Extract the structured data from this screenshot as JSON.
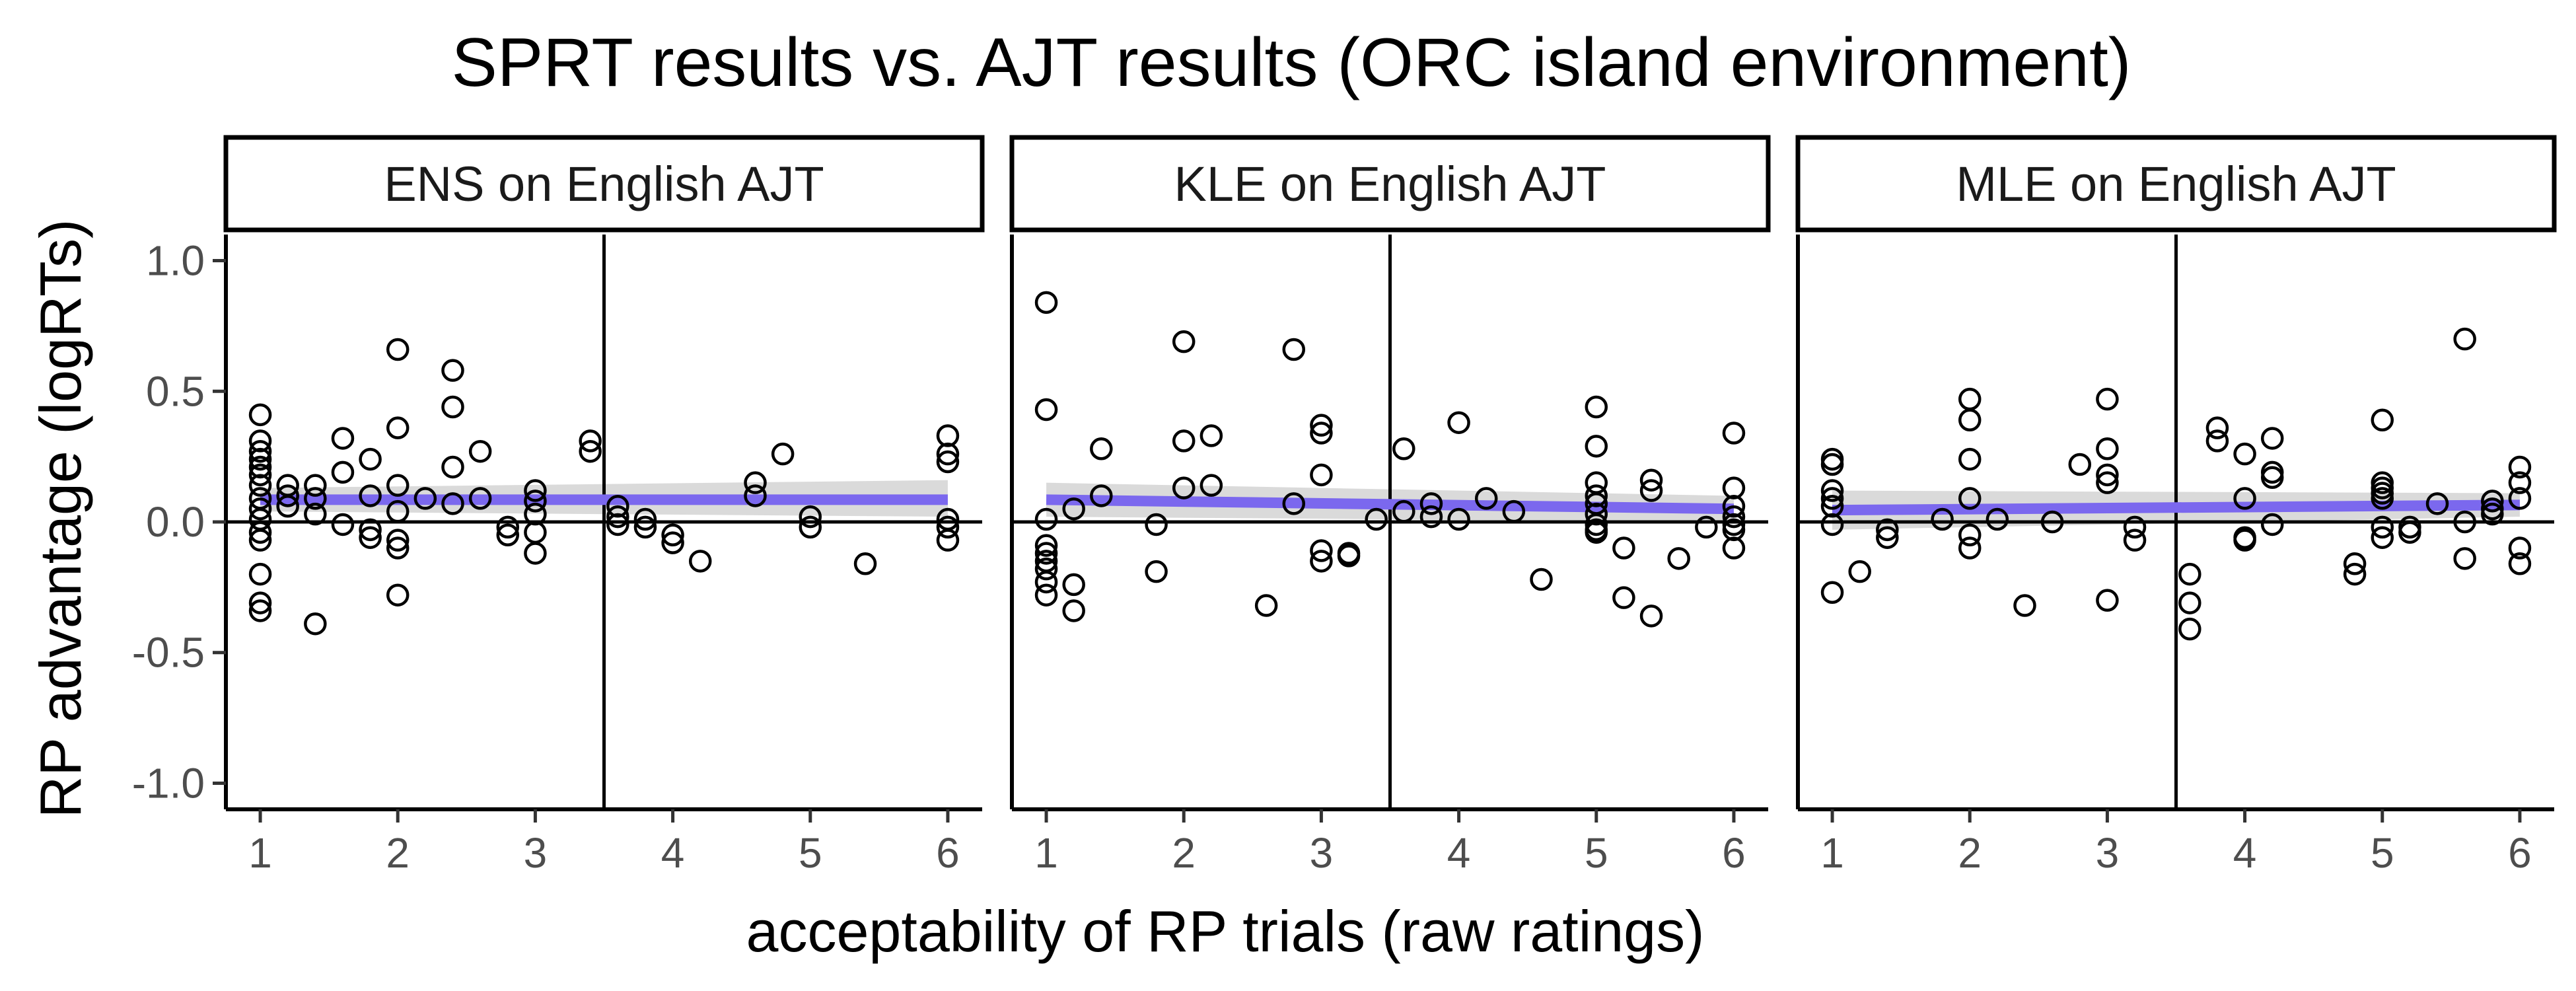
{
  "chart_data": {
    "type": "scatter",
    "title": "SPRT results vs. AJT results (ORC island environment)",
    "xlabel": "acceptability of RP trials (raw ratings)",
    "ylabel": "RP advantage (logRTs)",
    "xlim": [
      0.75,
      6.25
    ],
    "ylim": [
      -1.1,
      1.1
    ],
    "xticks": [
      1,
      2,
      3,
      4,
      5,
      6
    ],
    "xtick_labels": [
      "1",
      "2",
      "3",
      "4",
      "5",
      "6"
    ],
    "yticks": [
      1.0,
      0.5,
      0.0,
      -0.5,
      -1.0
    ],
    "ytick_labels": [
      "1.0",
      "0.5",
      "0.0",
      "-0.5",
      "-1.0"
    ],
    "reference_lines": {
      "x": 3.5,
      "y": 0.0
    },
    "colors": {
      "fit_line": "#7b68ee",
      "confidence_band": "#d3d3d3",
      "points": "#000000"
    },
    "grid": false,
    "panels": [
      {
        "label": "ENS on English AJT",
        "fit": {
          "x": [
            1,
            6
          ],
          "y": [
            0.085,
            0.085
          ],
          "ci_lower": [
            0.04,
            0.02
          ],
          "ci_upper": [
            0.13,
            0.16
          ]
        },
        "points": [
          [
            1,
            0.41
          ],
          [
            1,
            0.31
          ],
          [
            1,
            0.27
          ],
          [
            1,
            0.24
          ],
          [
            1,
            0.21
          ],
          [
            1,
            0.18
          ],
          [
            1,
            0.14
          ],
          [
            1,
            0.09
          ],
          [
            1,
            0.05
          ],
          [
            1,
            0.01
          ],
          [
            1,
            -0.04
          ],
          [
            1,
            -0.07
          ],
          [
            1,
            -0.2
          ],
          [
            1,
            -0.31
          ],
          [
            1,
            -0.34
          ],
          [
            1.2,
            0.14
          ],
          [
            1.2,
            0.1
          ],
          [
            1.2,
            0.06
          ],
          [
            1.4,
            0.14
          ],
          [
            1.4,
            0.09
          ],
          [
            1.4,
            0.03
          ],
          [
            1.4,
            -0.39
          ],
          [
            1.6,
            0.32
          ],
          [
            1.6,
            0.19
          ],
          [
            1.6,
            -0.01
          ],
          [
            1.8,
            0.24
          ],
          [
            1.8,
            0.1
          ],
          [
            1.8,
            -0.03
          ],
          [
            1.8,
            -0.06
          ],
          [
            2,
            0.66
          ],
          [
            2,
            0.36
          ],
          [
            2,
            0.14
          ],
          [
            2,
            0.04
          ],
          [
            2,
            -0.07
          ],
          [
            2,
            -0.1
          ],
          [
            2,
            -0.28
          ],
          [
            2.2,
            0.09
          ],
          [
            2.4,
            0.58
          ],
          [
            2.4,
            0.44
          ],
          [
            2.4,
            0.21
          ],
          [
            2.4,
            0.07
          ],
          [
            2.6,
            0.27
          ],
          [
            2.6,
            0.09
          ],
          [
            2.8,
            -0.02
          ],
          [
            2.8,
            -0.05
          ],
          [
            3,
            0.12
          ],
          [
            3,
            0.08
          ],
          [
            3,
            0.03
          ],
          [
            3,
            -0.04
          ],
          [
            3,
            -0.12
          ],
          [
            3.4,
            0.31
          ],
          [
            3.4,
            0.27
          ],
          [
            3.6,
            0.06
          ],
          [
            3.6,
            0.02
          ],
          [
            3.6,
            -0.01
          ],
          [
            3.8,
            0.01
          ],
          [
            3.8,
            -0.02
          ],
          [
            4,
            -0.05
          ],
          [
            4,
            -0.08
          ],
          [
            4.2,
            -0.15
          ],
          [
            4.6,
            0.15
          ],
          [
            4.6,
            0.1
          ],
          [
            4.8,
            0.26
          ],
          [
            5,
            0.02
          ],
          [
            5,
            -0.02
          ],
          [
            5.4,
            -0.16
          ],
          [
            6,
            0.33
          ],
          [
            6,
            0.26
          ],
          [
            6,
            0.23
          ],
          [
            6,
            0.01
          ],
          [
            6,
            -0.02
          ],
          [
            6,
            -0.07
          ]
        ]
      },
      {
        "label": "KLE on English AJT",
        "fit": {
          "x": [
            1,
            6
          ],
          "y": [
            0.085,
            0.05
          ],
          "ci_lower": [
            0.02,
            0.0
          ],
          "ci_upper": [
            0.15,
            0.1
          ]
        },
        "points": [
          [
            1,
            0.84
          ],
          [
            1,
            0.43
          ],
          [
            1,
            0.01
          ],
          [
            1,
            -0.09
          ],
          [
            1,
            -0.12
          ],
          [
            1,
            -0.15
          ],
          [
            1,
            -0.18
          ],
          [
            1,
            -0.23
          ],
          [
            1,
            -0.28
          ],
          [
            1.2,
            0.05
          ],
          [
            1.2,
            -0.24
          ],
          [
            1.2,
            -0.34
          ],
          [
            1.4,
            0.28
          ],
          [
            1.4,
            0.1
          ],
          [
            1.8,
            -0.01
          ],
          [
            1.8,
            -0.19
          ],
          [
            2,
            0.69
          ],
          [
            2,
            0.31
          ],
          [
            2,
            0.13
          ],
          [
            2.2,
            0.33
          ],
          [
            2.2,
            0.14
          ],
          [
            2.6,
            -0.32
          ],
          [
            2.8,
            0.66
          ],
          [
            2.8,
            0.07
          ],
          [
            3,
            0.37
          ],
          [
            3,
            0.34
          ],
          [
            3,
            0.18
          ],
          [
            3,
            -0.11
          ],
          [
            3,
            -0.15
          ],
          [
            3.2,
            -0.12
          ],
          [
            3.2,
            -0.13
          ],
          [
            3.4,
            0.01
          ],
          [
            3.6,
            0.28
          ],
          [
            3.6,
            0.04
          ],
          [
            3.8,
            0.07
          ],
          [
            3.8,
            0.02
          ],
          [
            4,
            0.38
          ],
          [
            4,
            0.01
          ],
          [
            4.2,
            0.09
          ],
          [
            4.4,
            0.04
          ],
          [
            4.6,
            -0.22
          ],
          [
            5,
            0.44
          ],
          [
            5,
            0.29
          ],
          [
            5,
            0.15
          ],
          [
            5,
            0.1
          ],
          [
            5,
            0.07
          ],
          [
            5,
            0.03
          ],
          [
            5,
            -0.01
          ],
          [
            5,
            -0.03
          ],
          [
            5,
            -0.04
          ],
          [
            5.2,
            -0.1
          ],
          [
            5.2,
            -0.29
          ],
          [
            5.4,
            0.16
          ],
          [
            5.4,
            0.12
          ],
          [
            5.4,
            -0.36
          ],
          [
            5.6,
            -0.14
          ],
          [
            5.8,
            -0.02
          ],
          [
            6,
            0.34
          ],
          [
            6,
            0.13
          ],
          [
            6,
            0.06
          ],
          [
            6,
            0.02
          ],
          [
            6,
            -0.01
          ],
          [
            6,
            -0.03
          ],
          [
            6,
            -0.1
          ]
        ]
      },
      {
        "label": "MLE on English AJT",
        "fit": {
          "x": [
            1,
            6
          ],
          "y": [
            0.045,
            0.065
          ],
          "ci_lower": [
            -0.03,
            0.02
          ],
          "ci_upper": [
            0.12,
            0.11
          ]
        },
        "points": [
          [
            1,
            0.24
          ],
          [
            1,
            0.22
          ],
          [
            1,
            0.12
          ],
          [
            1,
            0.09
          ],
          [
            1,
            0.06
          ],
          [
            1,
            -0.01
          ],
          [
            1,
            -0.27
          ],
          [
            1.2,
            -0.19
          ],
          [
            1.4,
            -0.03
          ],
          [
            1.4,
            -0.06
          ],
          [
            1.8,
            0.01
          ],
          [
            2,
            0.47
          ],
          [
            2,
            0.39
          ],
          [
            2,
            0.24
          ],
          [
            2,
            0.09
          ],
          [
            2,
            -0.05
          ],
          [
            2,
            -0.1
          ],
          [
            2.2,
            0.01
          ],
          [
            2.4,
            -0.32
          ],
          [
            2.6,
            0.0
          ],
          [
            2.8,
            0.22
          ],
          [
            3,
            0.47
          ],
          [
            3,
            0.28
          ],
          [
            3,
            0.18
          ],
          [
            3,
            0.15
          ],
          [
            3,
            -0.3
          ],
          [
            3.2,
            -0.02
          ],
          [
            3.2,
            -0.07
          ],
          [
            3.6,
            -0.2
          ],
          [
            3.6,
            -0.31
          ],
          [
            3.6,
            -0.41
          ],
          [
            3.8,
            0.36
          ],
          [
            3.8,
            0.31
          ],
          [
            4,
            0.26
          ],
          [
            4,
            0.09
          ],
          [
            4,
            -0.06
          ],
          [
            4,
            -0.07
          ],
          [
            4.2,
            0.32
          ],
          [
            4.2,
            0.19
          ],
          [
            4.2,
            0.17
          ],
          [
            4.2,
            -0.01
          ],
          [
            5,
            0.39
          ],
          [
            5,
            0.15
          ],
          [
            5,
            0.13
          ],
          [
            5,
            0.11
          ],
          [
            5,
            0.09
          ],
          [
            5,
            -0.02
          ],
          [
            5,
            -0.06
          ],
          [
            4.8,
            -0.16
          ],
          [
            4.8,
            -0.2
          ],
          [
            5.2,
            -0.02
          ],
          [
            5.2,
            -0.04
          ],
          [
            5.4,
            0.07
          ],
          [
            5.6,
            0.7
          ],
          [
            5.6,
            0.0
          ],
          [
            5.6,
            -0.14
          ],
          [
            5.8,
            0.08
          ],
          [
            5.8,
            0.05
          ],
          [
            5.8,
            0.03
          ],
          [
            6,
            0.21
          ],
          [
            6,
            0.15
          ],
          [
            6,
            0.09
          ],
          [
            6,
            -0.1
          ],
          [
            6,
            -0.16
          ]
        ]
      }
    ]
  }
}
